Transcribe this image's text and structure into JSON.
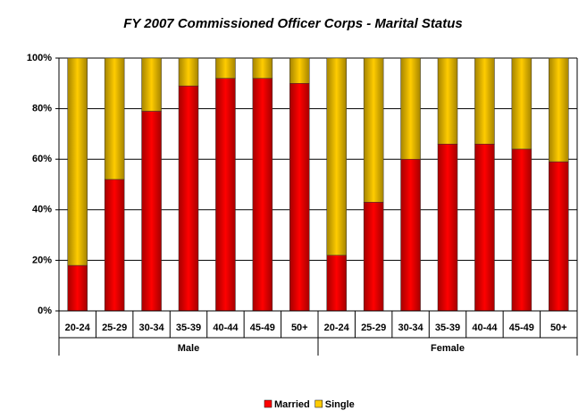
{
  "chart_data": {
    "type": "stacked-bar",
    "title": "FY 2007 Commissioned Officer Corps - Marital Status",
    "groups": [
      {
        "label": "Male",
        "categories": [
          "20-24",
          "25-29",
          "30-34",
          "35-39",
          "40-44",
          "45-49",
          "50+"
        ]
      },
      {
        "label": "Female",
        "categories": [
          "20-24",
          "25-29",
          "30-34",
          "35-39",
          "40-44",
          "45-49",
          "50+"
        ]
      }
    ],
    "series": [
      {
        "name": "Married",
        "color": "#ff0000",
        "values": [
          18,
          52,
          79,
          89,
          92,
          92,
          90,
          22,
          43,
          60,
          66,
          66,
          64,
          59
        ]
      },
      {
        "name": "Single",
        "color": "#ffcc00",
        "values": [
          82,
          48,
          21,
          11,
          8,
          8,
          10,
          78,
          57,
          40,
          34,
          34,
          36,
          41
        ]
      }
    ],
    "ylim": [
      0,
      100
    ],
    "yticks": [
      {
        "value": 0,
        "label": "0%"
      },
      {
        "value": 20,
        "label": "20%"
      },
      {
        "value": 40,
        "label": "40%"
      },
      {
        "value": 60,
        "label": "60%"
      },
      {
        "value": 80,
        "label": "80%"
      },
      {
        "value": 100,
        "label": "100%"
      }
    ],
    "grid": true,
    "legend": "bottom"
  }
}
